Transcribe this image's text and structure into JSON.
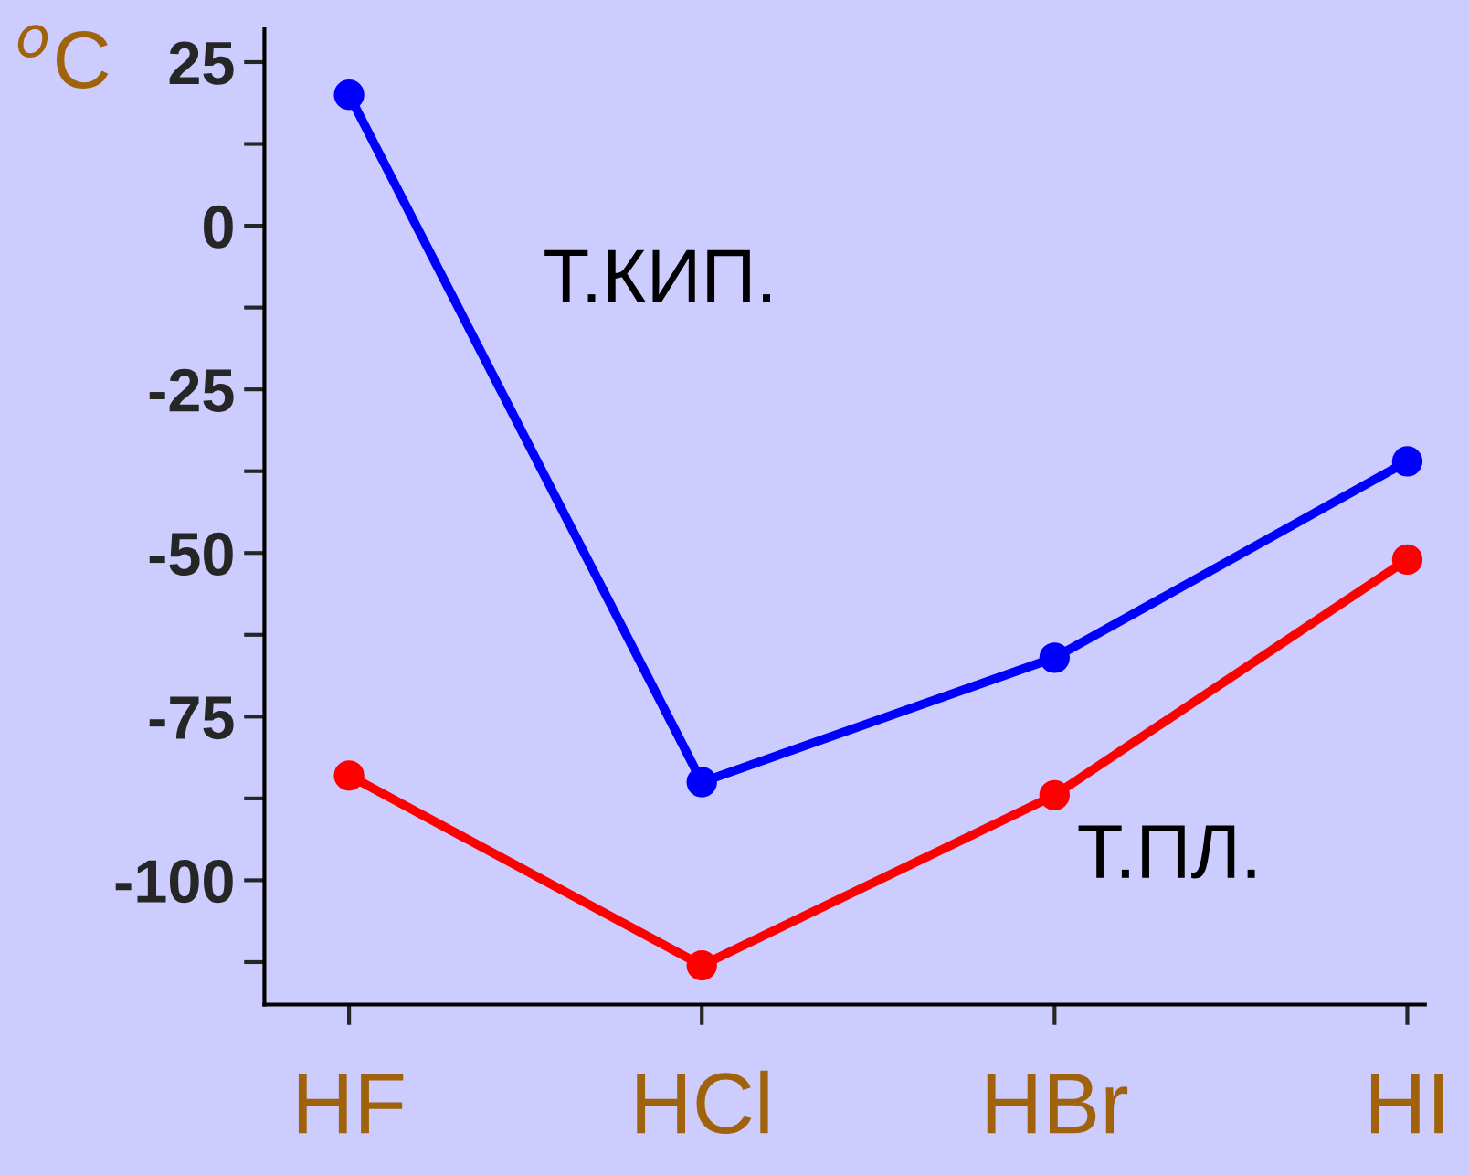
{
  "chart_data": {
    "type": "line",
    "ylabel": "$^{o}$C",
    "categories": [
      "HF",
      "HCl",
      "HBr",
      "HI"
    ],
    "series": [
      {
        "name": "Т.КИП.",
        "color": "#0000ff",
        "values": [
          20,
          -85,
          -66,
          -36
        ]
      },
      {
        "name": "Т.ПЛ.",
        "color": "#ff0000",
        "values": [
          -84,
          -113,
          -87,
          -51
        ]
      }
    ],
    "ylim": [
      -119,
      30
    ],
    "yticks": [
      -100,
      -75,
      -50,
      -25,
      0,
      25,
      {
        "value": -112.5,
        "label": null
      },
      {
        "value": -87.5,
        "label": null
      },
      {
        "value": -62.5,
        "label": null
      },
      {
        "value": -37.5,
        "label": null
      },
      {
        "value": -12.5,
        "label": null
      },
      {
        "value": 12.5,
        "label": null
      }
    ],
    "marker": "circle",
    "line_style": "solid",
    "grid": false,
    "legend": false
  }
}
